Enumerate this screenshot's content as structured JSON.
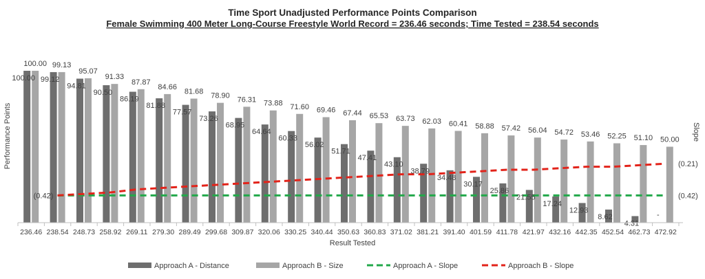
{
  "chart_data": {
    "type": "bar",
    "title": "Time  Sport Unadjusted Performance Points Comparison",
    "subtitle": "Female Swimming  400 Meter Long-Course Freestyle World Record = 236.46 seconds; Time Tested = 238.54 seconds",
    "xlabel": "Result Tested",
    "ylabel": "Performance Points",
    "y2label": "Slope",
    "ylim": [
      0,
      100
    ],
    "categories": [
      "236.46",
      "238.54",
      "248.73",
      "258.92",
      "269.11",
      "279.30",
      "289.49",
      "299.68",
      "309.87",
      "320.06",
      "330.25",
      "340.44",
      "350.63",
      "360.83",
      "371.02",
      "381.21",
      "391.40",
      "401.59",
      "411.78",
      "421.97",
      "432.16",
      "442.35",
      "452.54",
      "462.73",
      "472.92"
    ],
    "series": [
      {
        "name": "Approach A - Distance",
        "color": "#6e6e6e",
        "values": [
          100.0,
          99.12,
          94.81,
          90.5,
          86.19,
          81.88,
          77.57,
          73.26,
          68.95,
          64.64,
          60.33,
          56.02,
          51.71,
          47.41,
          43.1,
          38.79,
          34.48,
          30.17,
          25.86,
          21.55,
          17.24,
          12.93,
          8.62,
          4.31,
          0
        ],
        "labels": [
          "100.00",
          "99.12",
          "94.81",
          "90.50",
          "86.19",
          "81.88",
          "77.57",
          "73.26",
          "68.95",
          "64.64",
          "60.33",
          "56.02",
          "51.71",
          "47.41",
          "43.10",
          "38.79",
          "34.48",
          "30.17",
          "25.86",
          "21.55",
          "17.24",
          "12.93",
          "8.62",
          "4.31",
          "-"
        ]
      },
      {
        "name": "Approach B - Size",
        "color": "#a6a6a6",
        "values": [
          100.0,
          99.13,
          95.07,
          91.33,
          87.87,
          84.66,
          81.68,
          78.9,
          76.31,
          73.88,
          71.6,
          69.46,
          67.44,
          65.53,
          63.73,
          62.03,
          60.41,
          58.88,
          57.42,
          56.04,
          54.72,
          53.46,
          52.25,
          51.1,
          50.0
        ],
        "labels": [
          "100.00",
          "99.13",
          "95.07",
          "91.33",
          "87.87",
          "84.66",
          "81.68",
          "78.90",
          "76.31",
          "73.88",
          "71.60",
          "69.46",
          "67.44",
          "65.53",
          "63.73",
          "62.03",
          "60.41",
          "58.88",
          "57.42",
          "56.04",
          "54.72",
          "53.46",
          "52.25",
          "51.10",
          "50.00"
        ]
      }
    ],
    "slope_series": [
      {
        "name": "Approach A - Slope",
        "color": "#22a84a",
        "start_label": "(0.42)",
        "end_label": "(0.42)",
        "values": [
          -0.42,
          -0.42,
          -0.42,
          -0.42,
          -0.42,
          -0.42,
          -0.42,
          -0.42,
          -0.42,
          -0.42,
          -0.42,
          -0.42,
          -0.42,
          -0.42,
          -0.42,
          -0.42,
          -0.42,
          -0.42,
          -0.42,
          -0.42,
          -0.42,
          -0.42,
          -0.42,
          -0.42
        ]
      },
      {
        "name": "Approach B - Slope",
        "color": "#e2231a",
        "start_label": "(0.42)",
        "end_label": "(0.21)",
        "values": [
          -0.42,
          -0.41,
          -0.4,
          -0.38,
          -0.37,
          -0.36,
          -0.35,
          -0.34,
          -0.33,
          -0.32,
          -0.31,
          -0.3,
          -0.29,
          -0.28,
          -0.28,
          -0.27,
          -0.26,
          -0.25,
          -0.25,
          -0.24,
          -0.23,
          -0.23,
          -0.22,
          -0.21
        ]
      }
    ],
    "legend": {
      "position": "bottom"
    }
  }
}
